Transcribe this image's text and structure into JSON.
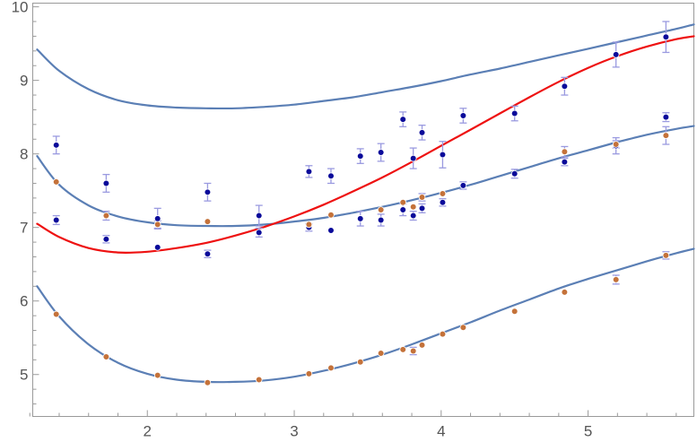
{
  "chart_data": {
    "type": "scatter",
    "title": "",
    "xlabel": "",
    "ylabel": "",
    "xlim": [
      1.22,
      5.72
    ],
    "ylim": [
      4.43,
      10.05
    ],
    "grid": false,
    "legend": "none",
    "x_ticks": [
      2,
      3,
      4,
      5
    ],
    "x_minor_ticks": [
      1.2,
      1.4,
      1.6,
      1.8,
      2.2,
      2.4,
      2.6,
      2.8,
      3.2,
      3.4,
      3.6,
      3.8,
      4.2,
      4.4,
      4.6,
      4.8,
      5.2,
      5.4,
      5.6
    ],
    "y_ticks": [
      5,
      6,
      7,
      8,
      9,
      10
    ],
    "y_minor_ticks": [
      4.6,
      4.8,
      5.2,
      5.4,
      5.6,
      5.8,
      6.2,
      6.4,
      6.6,
      6.8,
      7.2,
      7.4,
      7.6,
      7.8,
      8.2,
      8.4,
      8.6,
      8.8,
      9.2,
      9.4,
      9.6,
      9.8
    ],
    "colors": {
      "curve": "#5b7fb5",
      "fit": "#ee1111",
      "blue_points": "#0a0a9a",
      "orange_points": "#c4723a",
      "error_bars": "#9a9ae0",
      "frame": "#9a9a9a"
    },
    "curves": [
      {
        "color": "#5b7fb5",
        "x": [
          1.25,
          1.4,
          1.6,
          1.8,
          2.0,
          2.2,
          2.4,
          2.6,
          2.8,
          3.0,
          3.2,
          3.4,
          3.6,
          3.8,
          4.0,
          4.2,
          4.4,
          4.6,
          4.8,
          5.0,
          5.2,
          5.4,
          5.6,
          5.72
        ],
        "y": [
          9.42,
          9.13,
          8.88,
          8.73,
          8.66,
          8.63,
          8.62,
          8.62,
          8.64,
          8.67,
          8.72,
          8.77,
          8.84,
          8.91,
          8.99,
          9.08,
          9.16,
          9.25,
          9.34,
          9.43,
          9.52,
          9.61,
          9.7,
          9.76
        ]
      },
      {
        "color": "#5b7fb5",
        "x": [
          1.25,
          1.4,
          1.6,
          1.8,
          2.0,
          2.2,
          2.4,
          2.6,
          2.8,
          3.0,
          3.2,
          3.4,
          3.6,
          3.8,
          4.0,
          4.2,
          4.4,
          4.6,
          4.8,
          5.0,
          5.2,
          5.4,
          5.6,
          5.72
        ],
        "y": [
          7.97,
          7.58,
          7.3,
          7.15,
          7.07,
          7.03,
          7.02,
          7.02,
          7.04,
          7.08,
          7.13,
          7.2,
          7.28,
          7.37,
          7.47,
          7.58,
          7.7,
          7.82,
          7.94,
          8.05,
          8.16,
          8.26,
          8.34,
          8.38
        ]
      },
      {
        "color": "#ee1111",
        "x": [
          1.25,
          1.4,
          1.6,
          1.8,
          2.0,
          2.2,
          2.4,
          2.6,
          2.8,
          3.0,
          3.2,
          3.4,
          3.6,
          3.8,
          4.0,
          4.2,
          4.4,
          4.6,
          4.8,
          5.0,
          5.2,
          5.4,
          5.6,
          5.72
        ],
        "y": [
          7.05,
          6.87,
          6.72,
          6.66,
          6.67,
          6.72,
          6.79,
          6.89,
          7.01,
          7.15,
          7.31,
          7.49,
          7.68,
          7.89,
          8.11,
          8.33,
          8.55,
          8.77,
          8.98,
          9.17,
          9.33,
          9.46,
          9.56,
          9.6
        ]
      },
      {
        "color": "#5b7fb5",
        "x": [
          1.25,
          1.4,
          1.6,
          1.8,
          2.0,
          2.2,
          2.4,
          2.6,
          2.8,
          3.0,
          3.2,
          3.4,
          3.6,
          3.8,
          4.0,
          4.2,
          4.4,
          4.6,
          4.8,
          5.0,
          5.2,
          5.4,
          5.6,
          5.72
        ],
        "y": [
          6.2,
          5.79,
          5.41,
          5.16,
          5.01,
          4.93,
          4.9,
          4.9,
          4.92,
          4.97,
          5.05,
          5.15,
          5.27,
          5.41,
          5.56,
          5.71,
          5.87,
          6.02,
          6.17,
          6.3,
          6.42,
          6.54,
          6.65,
          6.71
        ]
      }
    ],
    "blue_points": [
      {
        "x": 1.38,
        "y": 8.12,
        "err": 0.12
      },
      {
        "x": 1.38,
        "y": 7.1,
        "err": 0.06
      },
      {
        "x": 1.72,
        "y": 7.6,
        "err": 0.12
      },
      {
        "x": 1.72,
        "y": 6.84,
        "err": 0.05
      },
      {
        "x": 2.07,
        "y": 7.12,
        "err": 0.14
      },
      {
        "x": 2.07,
        "y": 6.73,
        "err": 0.03
      },
      {
        "x": 2.41,
        "y": 7.48,
        "err": 0.12
      },
      {
        "x": 2.41,
        "y": 6.64,
        "err": 0.05
      },
      {
        "x": 2.76,
        "y": 7.16,
        "err": 0.14
      },
      {
        "x": 2.76,
        "y": 6.93,
        "err": 0.06
      },
      {
        "x": 3.1,
        "y": 7.76,
        "err": 0.08
      },
      {
        "x": 3.1,
        "y": 7.0,
        "err": 0.05
      },
      {
        "x": 3.25,
        "y": 7.7,
        "err": 0.1
      },
      {
        "x": 3.25,
        "y": 6.96,
        "err": 0.04
      },
      {
        "x": 3.45,
        "y": 7.97,
        "err": 0.1
      },
      {
        "x": 3.45,
        "y": 7.12,
        "err": 0.1
      },
      {
        "x": 3.59,
        "y": 8.02,
        "err": 0.12
      },
      {
        "x": 3.59,
        "y": 7.1,
        "err": 0.08
      },
      {
        "x": 3.74,
        "y": 8.47,
        "err": 0.1
      },
      {
        "x": 3.74,
        "y": 7.24,
        "err": 0.08
      },
      {
        "x": 3.81,
        "y": 7.94,
        "err": 0.14
      },
      {
        "x": 3.81,
        "y": 7.16,
        "err": 0.06
      },
      {
        "x": 3.87,
        "y": 8.29,
        "err": 0.1
      },
      {
        "x": 3.87,
        "y": 7.26,
        "err": 0.06
      },
      {
        "x": 4.01,
        "y": 7.99,
        "err": 0.18
      },
      {
        "x": 4.01,
        "y": 7.34,
        "err": 0.05
      },
      {
        "x": 4.15,
        "y": 8.52,
        "err": 0.1
      },
      {
        "x": 4.15,
        "y": 7.57,
        "err": 0.05
      },
      {
        "x": 4.5,
        "y": 8.55,
        "err": 0.1
      },
      {
        "x": 4.5,
        "y": 7.73,
        "err": 0.06
      },
      {
        "x": 4.84,
        "y": 8.92,
        "err": 0.12
      },
      {
        "x": 4.84,
        "y": 7.89,
        "err": 0.05
      },
      {
        "x": 5.19,
        "y": 9.35,
        "err": 0.17
      },
      {
        "x": 5.19,
        "y": 8.11,
        "err": 0.11
      },
      {
        "x": 5.53,
        "y": 9.59,
        "err": 0.21
      },
      {
        "x": 5.53,
        "y": 8.5,
        "err": 0.06
      }
    ],
    "orange_points": [
      {
        "x": 1.38,
        "y": 7.62,
        "err": 0.04
      },
      {
        "x": 1.38,
        "y": 5.82,
        "err": 0.02
      },
      {
        "x": 1.72,
        "y": 7.16,
        "err": 0.06
      },
      {
        "x": 1.72,
        "y": 5.24,
        "err": 0.02
      },
      {
        "x": 2.07,
        "y": 7.04,
        "err": 0.05
      },
      {
        "x": 2.07,
        "y": 4.99,
        "err": 0.02
      },
      {
        "x": 2.41,
        "y": 7.08,
        "err": 0.03
      },
      {
        "x": 2.41,
        "y": 4.89,
        "err": 0.02
      },
      {
        "x": 2.76,
        "y": 4.93,
        "err": 0.02
      },
      {
        "x": 3.1,
        "y": 7.04,
        "err": 0.03
      },
      {
        "x": 3.1,
        "y": 5.01,
        "err": 0.02
      },
      {
        "x": 3.25,
        "y": 7.17,
        "err": 0.03
      },
      {
        "x": 3.25,
        "y": 5.09,
        "err": 0.02
      },
      {
        "x": 3.45,
        "y": 5.17,
        "err": 0.02
      },
      {
        "x": 3.59,
        "y": 7.24,
        "err": 0.04
      },
      {
        "x": 3.59,
        "y": 5.29,
        "err": 0.02
      },
      {
        "x": 3.74,
        "y": 7.34,
        "err": 0.03
      },
      {
        "x": 3.74,
        "y": 5.34,
        "err": 0.02
      },
      {
        "x": 3.81,
        "y": 7.28,
        "err": 0.03
      },
      {
        "x": 3.81,
        "y": 5.32,
        "err": 0.05
      },
      {
        "x": 3.87,
        "y": 7.41,
        "err": 0.05
      },
      {
        "x": 3.87,
        "y": 5.4,
        "err": 0.02
      },
      {
        "x": 4.01,
        "y": 7.46,
        "err": 0.04
      },
      {
        "x": 4.01,
        "y": 5.55,
        "err": 0.02
      },
      {
        "x": 4.15,
        "y": 5.64,
        "err": 0.02
      },
      {
        "x": 4.5,
        "y": 5.86,
        "err": 0.02
      },
      {
        "x": 4.84,
        "y": 8.03,
        "err": 0.07
      },
      {
        "x": 4.84,
        "y": 6.12,
        "err": 0.02
      },
      {
        "x": 5.19,
        "y": 8.13,
        "err": 0.05
      },
      {
        "x": 5.19,
        "y": 6.29,
        "err": 0.06
      },
      {
        "x": 5.53,
        "y": 8.25,
        "err": 0.12
      },
      {
        "x": 5.53,
        "y": 6.62,
        "err": 0.05
      }
    ]
  }
}
